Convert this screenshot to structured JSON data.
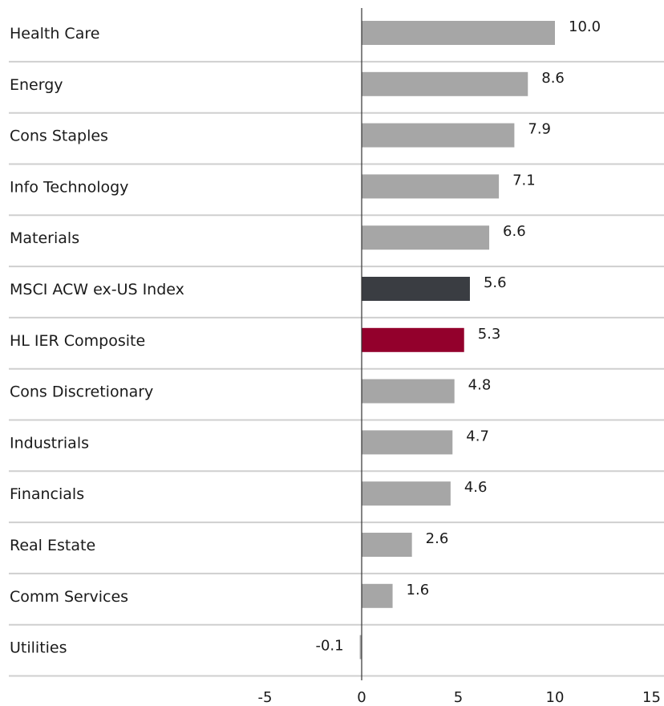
{
  "chart_data": {
    "type": "bar",
    "orientation": "horizontal",
    "categories": [
      "Health Care",
      "Energy",
      "Cons Staples",
      "Info Technology",
      "Materials",
      "MSCI ACW ex-US Index",
      "HL IER Composite",
      "Cons Discretionary",
      "Industrials",
      "Financials",
      "Real Estate",
      "Comm Services",
      "Utilities"
    ],
    "values": [
      10.0,
      8.6,
      7.9,
      7.1,
      6.6,
      5.6,
      5.3,
      4.8,
      4.7,
      4.6,
      2.6,
      1.6,
      -0.1
    ],
    "value_labels": [
      "10.0",
      "8.6",
      "7.9",
      "7.1",
      "6.6",
      "5.6",
      "5.3",
      "4.8",
      "4.7",
      "4.6",
      "2.6",
      "1.6",
      "-0.1"
    ],
    "bar_colors": [
      "#a6a6a6",
      "#a6a6a6",
      "#a6a6a6",
      "#a6a6a6",
      "#a6a6a6",
      "#3a3d42",
      "#93002c",
      "#a6a6a6",
      "#a6a6a6",
      "#a6a6a6",
      "#a6a6a6",
      "#a6a6a6",
      "#a6a6a6"
    ],
    "xlim": [
      -5,
      15
    ],
    "xticks": [
      "-5",
      "0",
      "5",
      "10",
      "15"
    ],
    "title": "",
    "xlabel": "",
    "ylabel": "",
    "grid": "horizontal separators between rows",
    "legend": "none"
  }
}
